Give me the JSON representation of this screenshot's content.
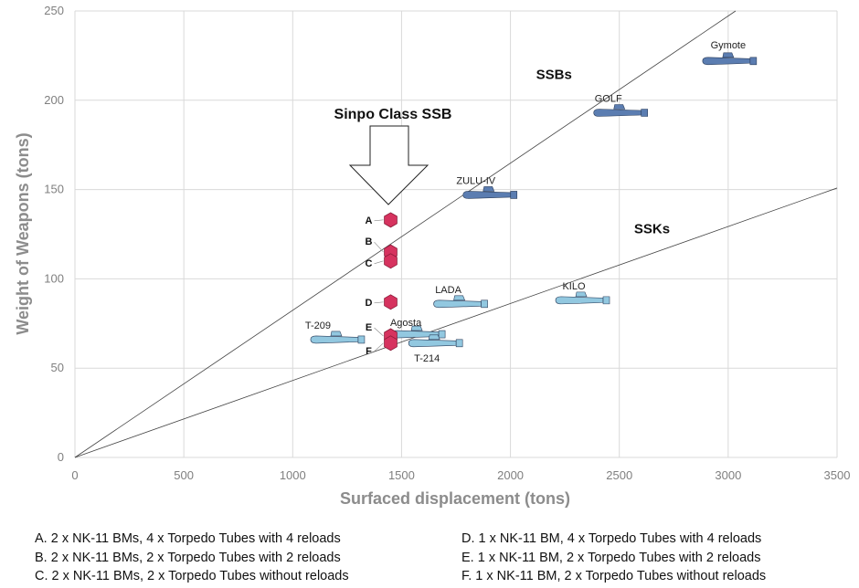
{
  "chart_data": {
    "type": "scatter",
    "xlabel": "Surfaced displacement (tons)",
    "ylabel": "Weight of Weapons (tons)",
    "xlim": [
      0,
      3500
    ],
    "ylim": [
      0,
      250
    ],
    "x_ticks": [
      0,
      500,
      1000,
      1500,
      2000,
      2500,
      3000,
      3500
    ],
    "y_ticks": [
      0,
      50,
      100,
      150,
      200,
      250
    ],
    "grid": true,
    "trend_lines": [
      {
        "label": "SSBs",
        "slope": 0.0824
      },
      {
        "label": "SSKs",
        "slope": 0.0431
      }
    ],
    "callout": "Sinpo Class SSB",
    "sinpo_points": [
      {
        "label": "A",
        "x": 1450,
        "y": 133
      },
      {
        "label": "B",
        "x": 1450,
        "y": 115
      },
      {
        "label": "C",
        "x": 1450,
        "y": 110
      },
      {
        "label": "D",
        "x": 1450,
        "y": 87
      },
      {
        "label": "E",
        "x": 1450,
        "y": 68
      },
      {
        "label": "F",
        "x": 1450,
        "y": 64
      }
    ],
    "submarines": [
      {
        "name": "Gymote",
        "x": 3000,
        "y": 222,
        "class": "SSB"
      },
      {
        "name": "GOLF",
        "x": 2500,
        "y": 193,
        "class": "SSB"
      },
      {
        "name": "ZULU-IV",
        "x": 1900,
        "y": 147,
        "class": "SSB"
      },
      {
        "name": "LADA",
        "x": 1765,
        "y": 86,
        "class": "SSK"
      },
      {
        "name": "KILO",
        "x": 2325,
        "y": 88,
        "class": "SSK"
      },
      {
        "name": "T-209",
        "x": 1200,
        "y": 66,
        "class": "SSK"
      },
      {
        "name": "Agosta",
        "x": 1570,
        "y": 69,
        "class": "SSK"
      },
      {
        "name": "T-214",
        "x": 1650,
        "y": 64,
        "class": "SSK"
      }
    ],
    "colors": {
      "ssb": "#5b7db1",
      "ssk": "#92c8e0",
      "sinpo": "#d6335f",
      "grid": "#d9d9d9"
    }
  },
  "legend": [
    "A. 2 x NK-11 BMs, 4 x Torpedo Tubes with 4 reloads",
    "B. 2 x NK-11 BMs, 2 x Torpedo Tubes with 2 reloads",
    "C. 2 x NK-11 BMs, 2 x Torpedo Tubes without reloads",
    "D. 1 x NK-11 BM, 4 x Torpedo Tubes with 4 reloads",
    "E. 1 x NK-11 BM, 2 x Torpedo Tubes with 2 reloads",
    "F. 1 x NK-11 BM, 2 x Torpedo Tubes without reloads"
  ]
}
